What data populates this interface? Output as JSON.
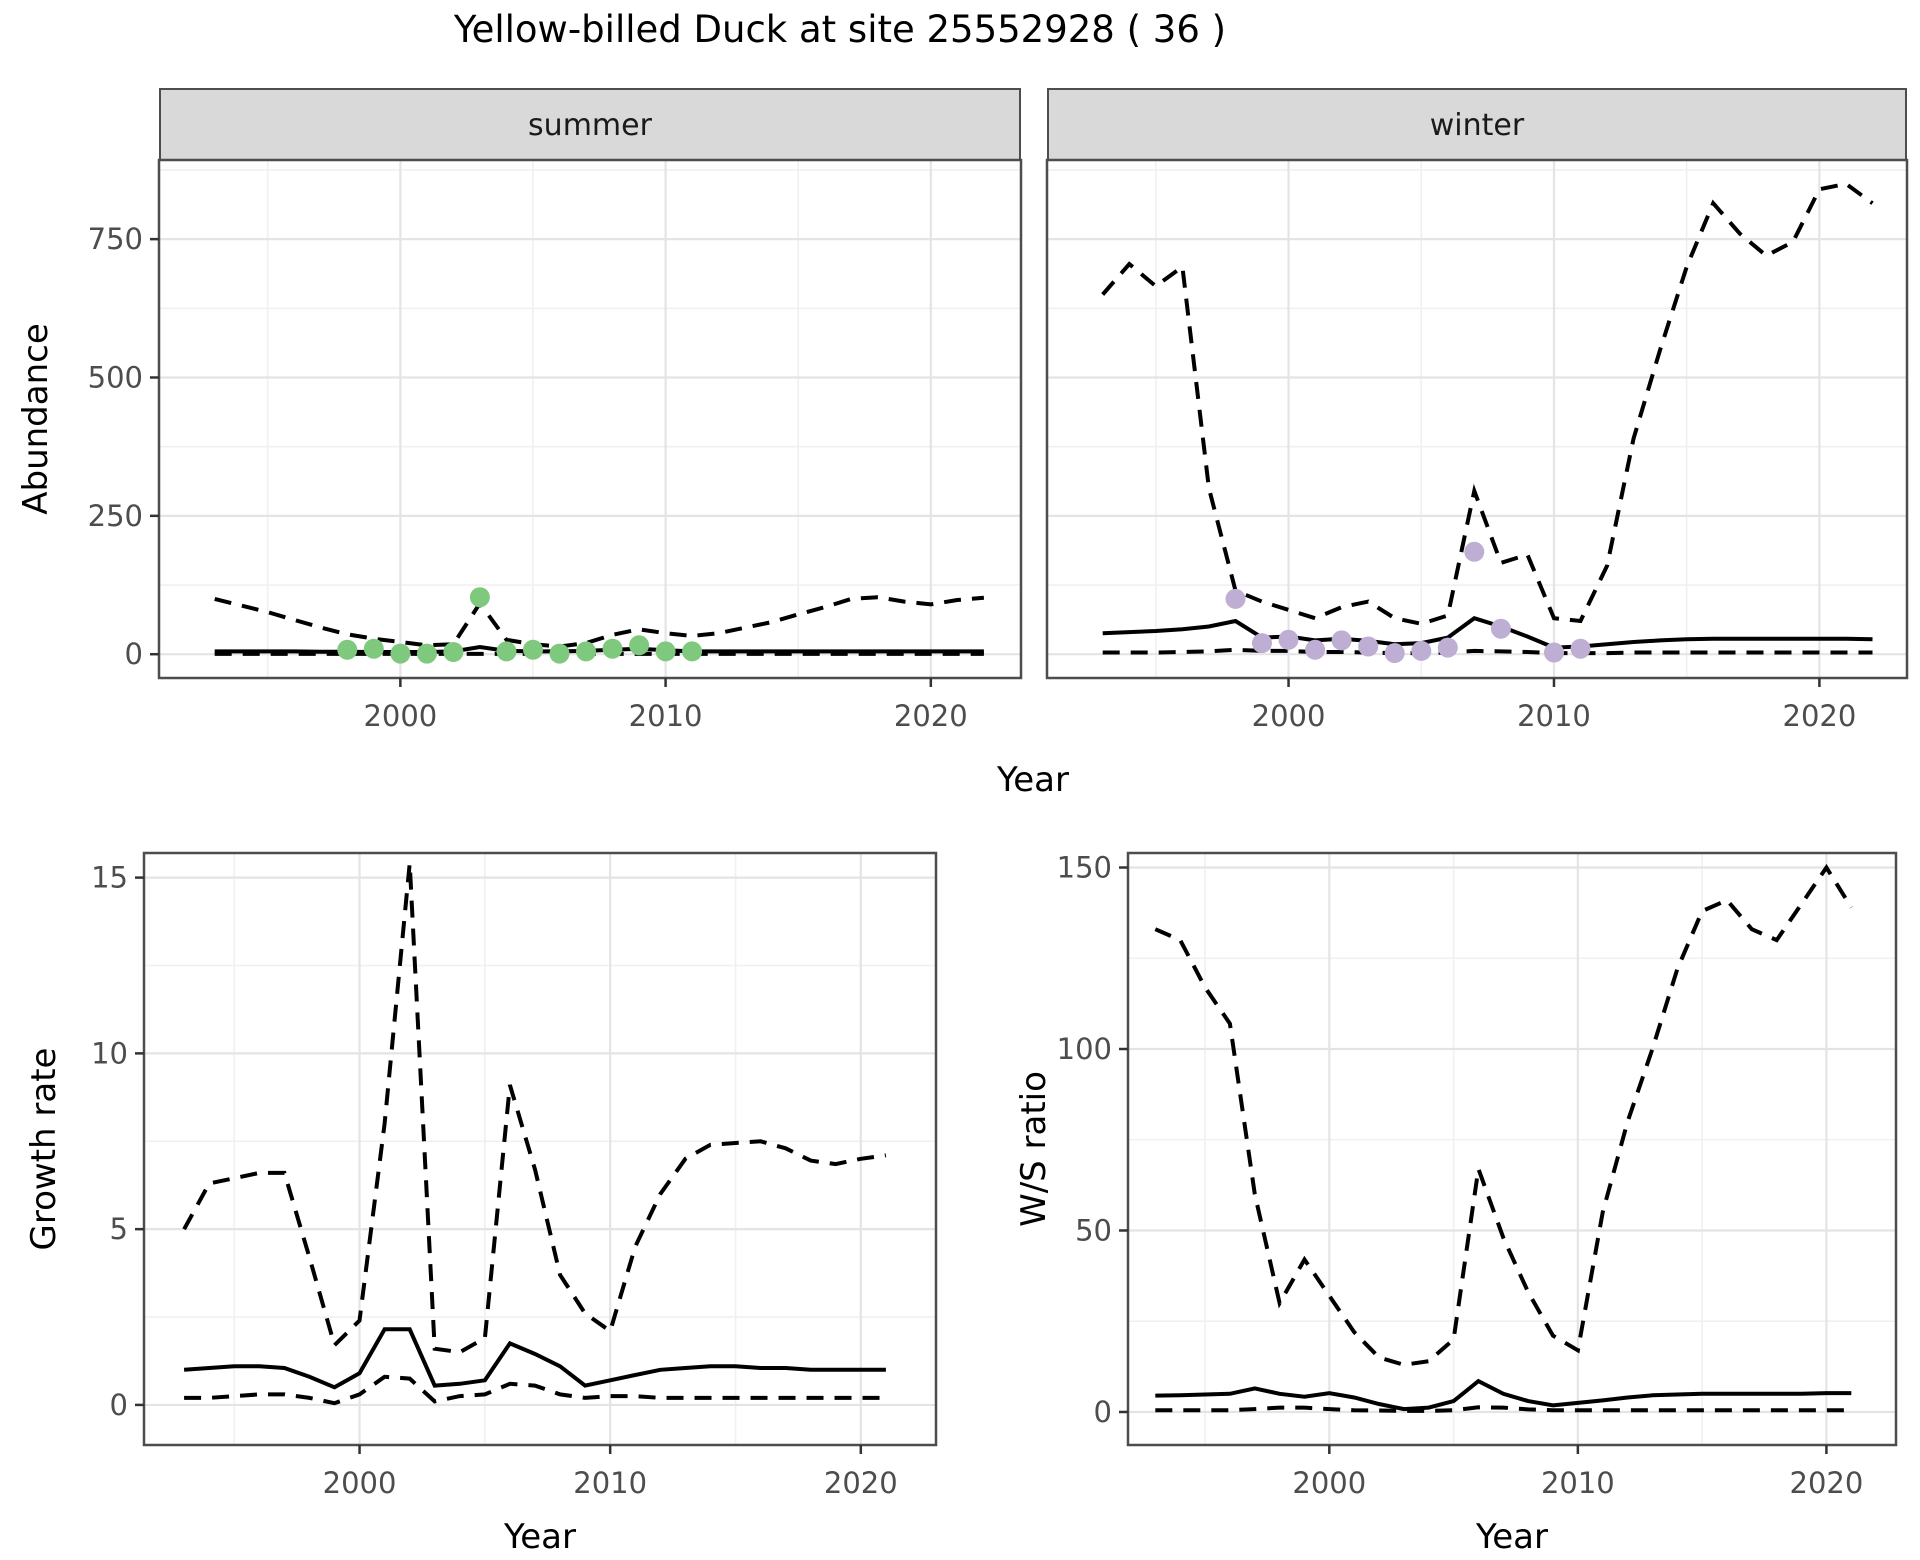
{
  "title": "Yellow-billed Duck at site 25552928 ( 36 )",
  "colors": {
    "line": "#000000",
    "summer_point": "#7FC97F",
    "winter_point": "#BEAED4",
    "grid_major": "#E4E4E4",
    "grid_minor": "#F0F0F0",
    "panel_border": "#4D4D4D",
    "tick_mark": "#333333",
    "tick_label": "#4D4D4D",
    "strip_bg": "#D9D9D9"
  },
  "chart_data": [
    {
      "id": "abundance-summer",
      "type": "line",
      "facet": "summer",
      "xlabel": "Year",
      "ylabel": "Abundance",
      "xlim": [
        1990.9,
        2023.4
      ],
      "ylim": [
        -43,
        893
      ],
      "xticks": [
        2000,
        2010,
        2020
      ],
      "xticks_minor": [
        1995,
        2005,
        2015
      ],
      "yticks": [
        0,
        250,
        500,
        750
      ],
      "yticks_minor": [
        125,
        375,
        625,
        875
      ],
      "x": [
        1993,
        1994,
        1995,
        1996,
        1997,
        1998,
        1999,
        2000,
        2001,
        2002,
        2003,
        2004,
        2005,
        2006,
        2007,
        2008,
        2009,
        2010,
        2011,
        2012,
        2013,
        2014,
        2015,
        2016,
        2017,
        2018,
        2019,
        2020,
        2021,
        2022
      ],
      "series": [
        {
          "name": "upper_ci",
          "style": "dashed",
          "values": [
            100,
            88,
            76,
            62,
            48,
            36,
            28,
            22,
            16,
            18,
            92,
            26,
            18,
            14,
            20,
            35,
            45,
            38,
            33,
            38,
            48,
            58,
            72,
            85,
            100,
            103,
            95,
            90,
            98,
            102
          ]
        },
        {
          "name": "lower_ci",
          "style": "dashed",
          "values": [
            0.5,
            0.5,
            0.5,
            0.5,
            0.5,
            0.5,
            0.5,
            0.5,
            0.5,
            0.5,
            0.5,
            0.5,
            0.5,
            0.5,
            0.5,
            0.5,
            0.5,
            0.5,
            0.5,
            0.5,
            0.5,
            0.5,
            0.5,
            0.5,
            0.5,
            0.5,
            0.5,
            0.5,
            0.5,
            0.5
          ]
        },
        {
          "name": "median",
          "style": "solid",
          "values": [
            5,
            5,
            5,
            5,
            4.5,
            4.5,
            4,
            4,
            4,
            5,
            13,
            6,
            5,
            5,
            6,
            8,
            10,
            7,
            5,
            5,
            5,
            5,
            5,
            5,
            5,
            5,
            5,
            5,
            5,
            5
          ]
        }
      ],
      "points": {
        "name": "summer-observations",
        "color": "#7FC97F",
        "years": [
          1998,
          1999,
          2000,
          2001,
          2002,
          2003,
          2004,
          2005,
          2006,
          2007,
          2008,
          2009,
          2010,
          2011
        ],
        "values": [
          8,
          10,
          1,
          1,
          4,
          103,
          5,
          8,
          1,
          5,
          10,
          16,
          5,
          5
        ]
      }
    },
    {
      "id": "abundance-winter",
      "type": "line",
      "facet": "winter",
      "xlabel": "Year",
      "ylabel": "Abundance",
      "xlim": [
        1990.9,
        2023.3
      ],
      "ylim": [
        -43,
        893
      ],
      "xticks": [
        2000,
        2010,
        2020
      ],
      "xticks_minor": [
        1995,
        2005,
        2015
      ],
      "yticks": [
        0,
        250,
        500,
        750
      ],
      "yticks_minor": [
        125,
        375,
        625,
        875
      ],
      "x": [
        1993,
        1994,
        1995,
        1996,
        1997,
        1998,
        1999,
        2000,
        2001,
        2002,
        2003,
        2004,
        2005,
        2006,
        2007,
        2008,
        2009,
        2010,
        2011,
        2012,
        2013,
        2014,
        2015,
        2016,
        2017,
        2018,
        2019,
        2020,
        2021,
        2022
      ],
      "series": [
        {
          "name": "upper_ci",
          "style": "dashed",
          "values": [
            650,
            705,
            665,
            700,
            300,
            115,
            95,
            80,
            65,
            85,
            95,
            65,
            55,
            70,
            295,
            165,
            180,
            65,
            60,
            160,
            390,
            550,
            700,
            815,
            760,
            720,
            745,
            840,
            850,
            815
          ]
        },
        {
          "name": "lower_ci",
          "style": "dashed",
          "values": [
            3,
            3,
            3,
            4,
            5,
            8,
            6,
            6,
            4,
            4,
            3,
            2,
            2,
            3,
            6,
            5,
            4,
            2,
            2,
            2,
            3,
            3,
            3,
            3,
            3,
            3,
            3,
            3,
            3,
            3
          ]
        },
        {
          "name": "median",
          "style": "solid",
          "values": [
            38,
            40,
            42,
            45,
            50,
            60,
            30,
            32,
            25,
            28,
            24,
            18,
            20,
            30,
            65,
            50,
            32,
            12,
            14,
            18,
            22,
            25,
            27,
            28,
            28,
            28,
            28,
            28,
            28,
            27
          ]
        }
      ],
      "points": {
        "name": "winter-observations",
        "color": "#BEAED4",
        "years": [
          1998,
          1999,
          2000,
          2001,
          2002,
          2003,
          2004,
          2005,
          2006,
          2007,
          2008,
          2010,
          2011
        ],
        "values": [
          100,
          20,
          26,
          8,
          25,
          14,
          2,
          6,
          12,
          185,
          46,
          3,
          10
        ]
      }
    },
    {
      "id": "growth-rate",
      "type": "line",
      "facet": "",
      "xlabel": "Year",
      "ylabel": "Growth rate",
      "xlim": [
        1991.4,
        2023.0
      ],
      "ylim": [
        -1.14,
        15.7
      ],
      "xticks": [
        2000,
        2010,
        2020
      ],
      "xticks_minor": [
        1995,
        2005,
        2015
      ],
      "yticks": [
        0,
        5,
        10,
        15
      ],
      "yticks_minor": [
        2.5,
        7.5,
        12.5
      ],
      "x": [
        1993,
        1994,
        1995,
        1996,
        1997,
        1998,
        1999,
        2000,
        2001,
        2002,
        2003,
        2004,
        2005,
        2006,
        2007,
        2008,
        2009,
        2010,
        2011,
        2012,
        2013,
        2014,
        2015,
        2016,
        2017,
        2018,
        2019,
        2020,
        2021
      ],
      "series": [
        {
          "name": "upper_ci",
          "style": "dashed",
          "values": [
            5,
            6.3,
            6.45,
            6.6,
            6.6,
            4.2,
            1.7,
            2.4,
            8,
            15.4,
            1.6,
            1.5,
            1.9,
            9.1,
            6.7,
            3.7,
            2.6,
            2.1,
            4.5,
            6,
            7,
            7.4,
            7.45,
            7.5,
            7.3,
            6.95,
            6.85,
            7,
            7.1
          ]
        },
        {
          "name": "lower_ci",
          "style": "dashed",
          "values": [
            0.2,
            0.2,
            0.25,
            0.3,
            0.3,
            0.2,
            0.05,
            0.3,
            0.8,
            0.75,
            0.1,
            0.25,
            0.3,
            0.6,
            0.55,
            0.3,
            0.2,
            0.25,
            0.25,
            0.2,
            0.2,
            0.2,
            0.2,
            0.2,
            0.2,
            0.2,
            0.2,
            0.2,
            0.2
          ]
        },
        {
          "name": "median",
          "style": "solid",
          "values": [
            1,
            1.05,
            1.1,
            1.1,
            1.05,
            0.8,
            0.5,
            0.9,
            2.15,
            2.15,
            0.55,
            0.6,
            0.7,
            1.75,
            1.45,
            1.1,
            0.55,
            0.7,
            0.85,
            1,
            1.05,
            1.1,
            1.1,
            1.05,
            1.05,
            1,
            1,
            1,
            1
          ]
        }
      ],
      "points": null
    },
    {
      "id": "ws-ratio",
      "type": "line",
      "facet": "",
      "xlabel": "Year",
      "ylabel": "W/S ratio",
      "xlim": [
        1991.9,
        2022.8
      ],
      "ylim": [
        -9.1,
        154
      ],
      "xticks": [
        2000,
        2010,
        2020
      ],
      "xticks_minor": [
        1995,
        2005,
        2015
      ],
      "yticks": [
        0,
        50,
        100,
        150
      ],
      "yticks_minor": [
        25,
        75,
        125
      ],
      "x": [
        1993,
        1994,
        1995,
        1996,
        1997,
        1998,
        1999,
        2000,
        2001,
        2002,
        2003,
        2004,
        2005,
        2006,
        2007,
        2008,
        2009,
        2010,
        2011,
        2012,
        2013,
        2014,
        2015,
        2016,
        2017,
        2018,
        2019,
        2020,
        2021
      ],
      "series": [
        {
          "name": "upper_ci",
          "style": "dashed",
          "values": [
            133,
            130,
            117,
            107,
            60,
            30,
            42,
            32,
            22,
            15,
            13,
            14,
            20,
            67,
            48,
            33,
            21,
            17,
            55,
            80,
            100,
            122,
            138,
            141,
            133,
            130,
            140,
            150,
            139
          ]
        },
        {
          "name": "lower_ci",
          "style": "dashed",
          "values": [
            0.5,
            0.5,
            0.5,
            0.5,
            0.8,
            1.2,
            1.2,
            0.8,
            0.5,
            0.4,
            0.3,
            0.3,
            0.5,
            1.3,
            1.2,
            0.7,
            0.5,
            0.5,
            0.5,
            0.5,
            0.5,
            0.5,
            0.5,
            0.5,
            0.5,
            0.5,
            0.5,
            0.5,
            0.5
          ]
        },
        {
          "name": "median",
          "style": "solid",
          "values": [
            4.5,
            4.6,
            4.8,
            5,
            6.5,
            5,
            4.2,
            5.2,
            4,
            2.2,
            0.8,
            1.2,
            3,
            8.5,
            5,
            3,
            1.8,
            2.5,
            3.2,
            4,
            4.6,
            4.8,
            5,
            5,
            5,
            5,
            5,
            5.2,
            5.2
          ]
        }
      ],
      "points": null
    }
  ]
}
